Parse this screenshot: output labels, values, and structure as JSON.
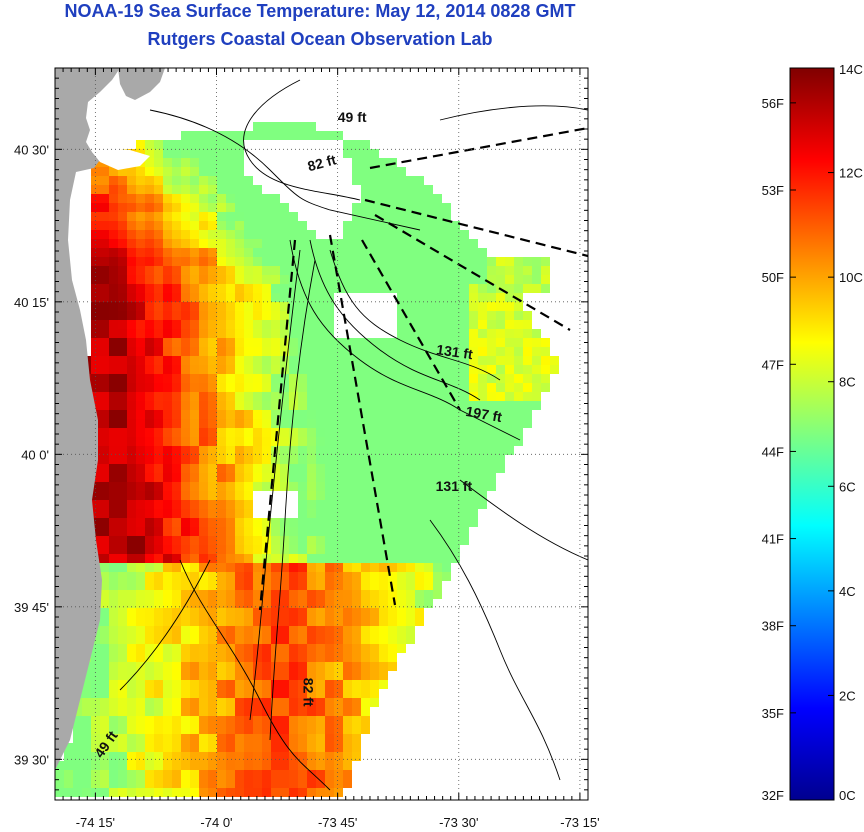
{
  "header": {
    "title": "NOAA-19 Sea Surface Temperature:  May 12, 2014 0828 GMT",
    "subtitle": "Rutgers Coastal Ocean Observation Lab"
  },
  "map": {
    "lon_range": [
      -74.3333,
      -73.2333
    ],
    "lat_range": [
      39.4333,
      40.6333
    ],
    "lat_ticks": [
      {
        "value": 40.5,
        "label": "40 30'"
      },
      {
        "value": 40.25,
        "label": "40 15'"
      },
      {
        "value": 40.0,
        "label": "40 0'"
      },
      {
        "value": 39.75,
        "label": "39 45'"
      },
      {
        "value": 39.5,
        "label": "39 30'"
      }
    ],
    "lon_ticks": [
      {
        "value": -74.25,
        "label": "-74 15'"
      },
      {
        "value": -74.0,
        "label": "-74 0'"
      },
      {
        "value": -73.75,
        "label": "-73 45'"
      },
      {
        "value": -73.5,
        "label": "-73 30'"
      },
      {
        "value": -73.25,
        "label": "-73 15'"
      }
    ],
    "contour_labels": [
      {
        "text": "49 ft",
        "lon": -73.72,
        "lat": 40.545,
        "rotate": 0
      },
      {
        "text": "82 ft",
        "lon": -73.78,
        "lat": 40.47,
        "rotate": -15
      },
      {
        "text": "131 ft",
        "lon": -73.51,
        "lat": 40.16,
        "rotate": 8
      },
      {
        "text": "197 ft",
        "lon": -73.45,
        "lat": 40.058,
        "rotate": 10
      },
      {
        "text": "131 ft",
        "lon": -73.51,
        "lat": 39.94,
        "rotate": 0
      },
      {
        "text": "82 ft",
        "lon": -73.82,
        "lat": 39.61,
        "rotate": 90
      },
      {
        "text": "49 ft",
        "lon": -74.22,
        "lat": 39.52,
        "rotate": -55
      }
    ],
    "land_color": "#a9a9a9",
    "no_data_color": "#ffffff"
  },
  "colorbar": {
    "celsius_range": [
      0,
      14
    ],
    "celsius_ticks": [
      "0C",
      "2C",
      "4C",
      "6C",
      "8C",
      "10C",
      "12C",
      "14C"
    ],
    "fahrenheit_ticks": [
      {
        "label": "32F",
        "value": 32
      },
      {
        "label": "35F",
        "value": 35
      },
      {
        "label": "38F",
        "value": 38
      },
      {
        "label": "41F",
        "value": 41
      },
      {
        "label": "44F",
        "value": 44
      },
      {
        "label": "47F",
        "value": 47
      },
      {
        "label": "50F",
        "value": 50
      },
      {
        "label": "53F",
        "value": 53
      },
      {
        "label": "56F",
        "value": 56
      }
    ],
    "colormap": "jet"
  }
}
